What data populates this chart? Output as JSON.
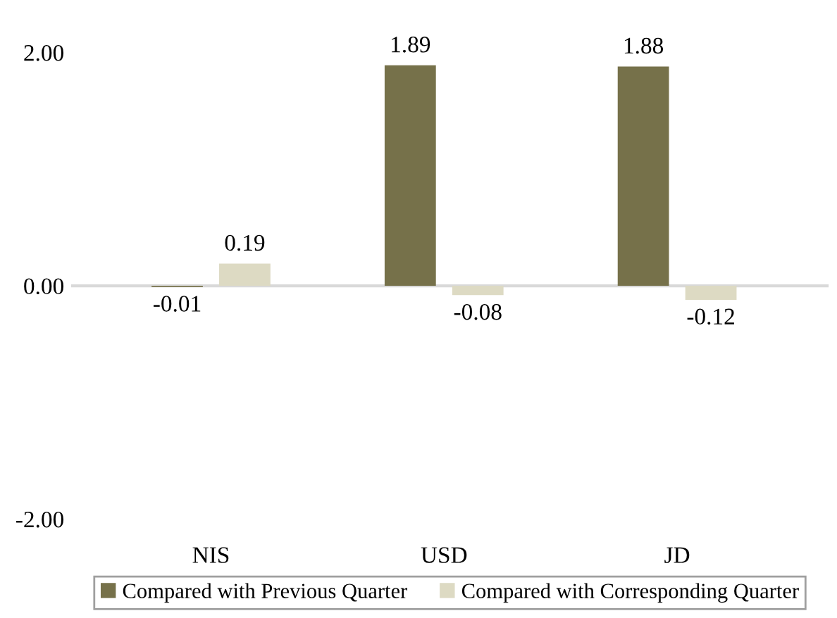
{
  "chart_data": {
    "type": "bar",
    "categories": [
      "NIS",
      "USD",
      "JD"
    ],
    "series": [
      {
        "name": "Compared with Previous Quarter",
        "color": "#76714a",
        "values": [
          -0.01,
          1.89,
          1.88
        ],
        "value_labels": [
          "-0.01",
          "1.89",
          "1.88"
        ]
      },
      {
        "name": "Compared with Corresponding Quarter",
        "color": "#dddac3",
        "values": [
          0.19,
          -0.08,
          -0.12
        ],
        "value_labels": [
          "0.19",
          "-0.08",
          "-0.12"
        ]
      }
    ],
    "ylim": [
      -2,
      2
    ],
    "yticks": [
      {
        "value": 2,
        "label": "2.00"
      },
      {
        "value": 0,
        "label": "0.00"
      },
      {
        "value": -2,
        "label": "-2.00"
      }
    ],
    "ref_lines": [
      {
        "axis": "y",
        "value": 0,
        "color": "#d9d9d9"
      }
    ],
    "legend": "bottom"
  }
}
